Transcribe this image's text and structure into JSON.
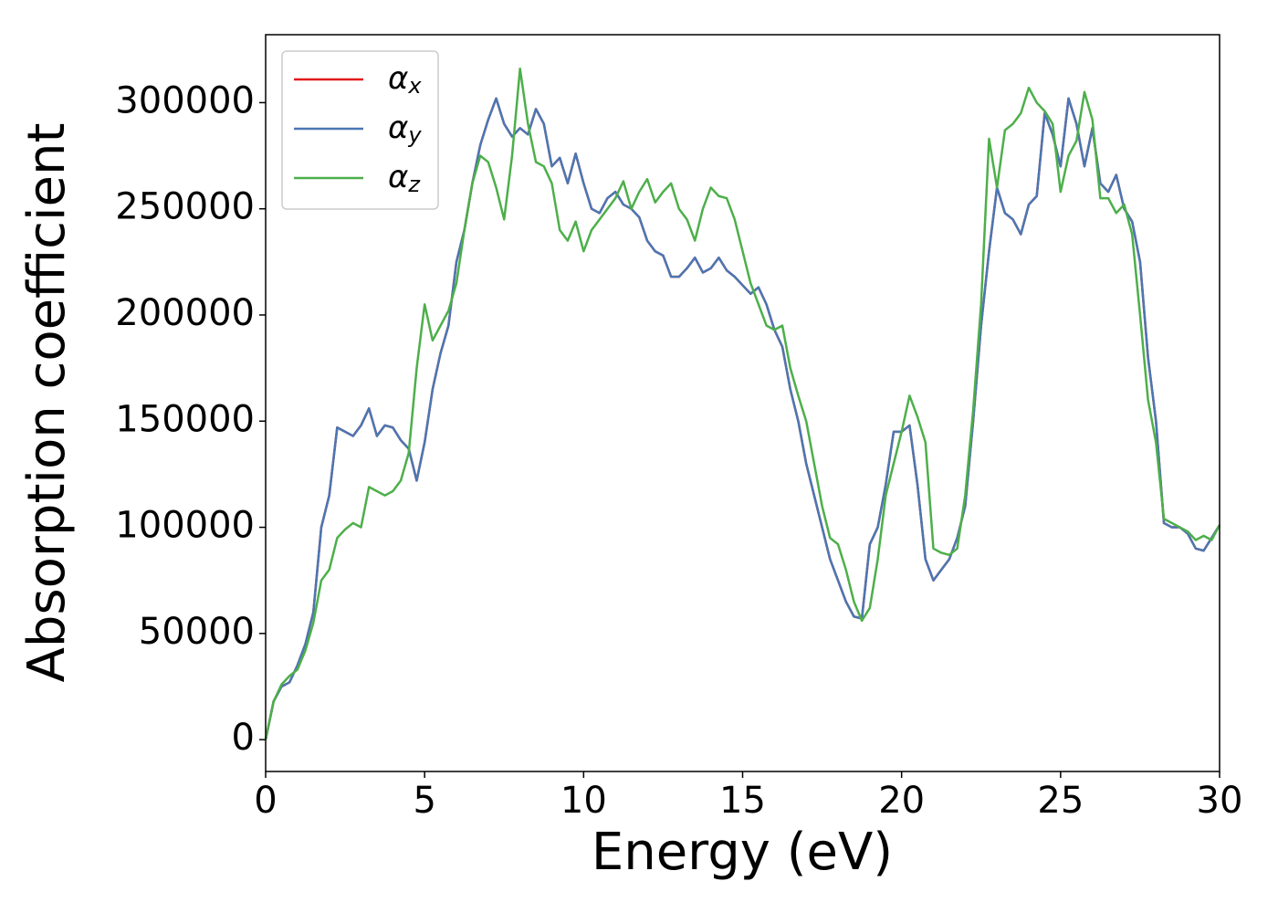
{
  "chart_data": {
    "type": "line",
    "xlabel": "Energy (eV)",
    "ylabel": "Absorption coefficient",
    "x": [
      0,
      0.25,
      0.5,
      0.75,
      1,
      1.25,
      1.5,
      1.75,
      2,
      2.25,
      2.5,
      2.75,
      3,
      3.25,
      3.5,
      3.75,
      4,
      4.25,
      4.5,
      4.75,
      5,
      5.25,
      5.5,
      5.75,
      6,
      6.25,
      6.5,
      6.75,
      7,
      7.25,
      7.5,
      7.75,
      8,
      8.25,
      8.5,
      8.75,
      9,
      9.25,
      9.5,
      9.75,
      10,
      10.25,
      10.5,
      10.75,
      11,
      11.25,
      11.5,
      11.75,
      12,
      12.25,
      12.5,
      12.75,
      13,
      13.25,
      13.5,
      13.75,
      14,
      14.25,
      14.5,
      14.75,
      15,
      15.25,
      15.5,
      15.75,
      16,
      16.25,
      16.5,
      16.75,
      17,
      17.25,
      17.5,
      17.75,
      18,
      18.25,
      18.5,
      18.75,
      19,
      19.25,
      19.5,
      19.75,
      20,
      20.25,
      20.5,
      20.75,
      21,
      21.25,
      21.5,
      21.75,
      22,
      22.25,
      22.5,
      22.75,
      23,
      23.25,
      23.5,
      23.75,
      24,
      24.25,
      24.5,
      24.75,
      25,
      25.25,
      25.5,
      25.75,
      26,
      26.25,
      26.5,
      26.75,
      27,
      27.25,
      27.5,
      27.75,
      28,
      28.25,
      28.5,
      28.75,
      29,
      29.25,
      29.5,
      29.75,
      30
    ],
    "series": [
      {
        "name": "αx",
        "color": "#e41a1c",
        "values": [
          0,
          18000,
          25000,
          27000,
          35000,
          45000,
          60000,
          100000,
          115000,
          147000,
          145000,
          143000,
          148000,
          156000,
          143000,
          148000,
          147000,
          141000,
          137000,
          122000,
          140000,
          165000,
          182000,
          195000,
          225000,
          240000,
          262000,
          280000,
          292000,
          302000,
          290000,
          284000,
          288000,
          285000,
          297000,
          290000,
          270000,
          274000,
          262000,
          276000,
          262000,
          250000,
          248000,
          255000,
          258000,
          252000,
          250000,
          246000,
          235000,
          230000,
          228000,
          218000,
          218000,
          222000,
          227000,
          220000,
          222000,
          227000,
          221000,
          218000,
          214000,
          210000,
          213000,
          205000,
          193000,
          185000,
          165000,
          150000,
          130000,
          115000,
          100000,
          85000,
          75000,
          65000,
          58000,
          57000,
          92000,
          100000,
          120000,
          145000,
          145000,
          148000,
          120000,
          85000,
          75000,
          80000,
          85000,
          95000,
          110000,
          150000,
          195000,
          230000,
          260000,
          248000,
          245000,
          238000,
          252000,
          256000,
          295000,
          285000,
          270000,
          302000,
          290000,
          270000,
          288000,
          262000,
          258000,
          266000,
          250000,
          244000,
          225000,
          180000,
          150000,
          102000,
          100000,
          100000,
          97000,
          90000,
          89000,
          95000,
          101000
        ]
      },
      {
        "name": "αy",
        "color": "#4a77b2",
        "values": [
          0,
          18000,
          25000,
          27000,
          35000,
          45000,
          60000,
          100000,
          115000,
          147000,
          145000,
          143000,
          148000,
          156000,
          143000,
          148000,
          147000,
          141000,
          137000,
          122000,
          140000,
          165000,
          182000,
          195000,
          225000,
          240000,
          262000,
          280000,
          292000,
          302000,
          290000,
          284000,
          288000,
          285000,
          297000,
          290000,
          270000,
          274000,
          262000,
          276000,
          262000,
          250000,
          248000,
          255000,
          258000,
          252000,
          250000,
          246000,
          235000,
          230000,
          228000,
          218000,
          218000,
          222000,
          227000,
          220000,
          222000,
          227000,
          221000,
          218000,
          214000,
          210000,
          213000,
          205000,
          193000,
          185000,
          165000,
          150000,
          130000,
          115000,
          100000,
          85000,
          75000,
          65000,
          58000,
          57000,
          92000,
          100000,
          120000,
          145000,
          145000,
          148000,
          120000,
          85000,
          75000,
          80000,
          85000,
          95000,
          110000,
          150000,
          195000,
          230000,
          260000,
          248000,
          245000,
          238000,
          252000,
          256000,
          295000,
          285000,
          270000,
          302000,
          290000,
          270000,
          288000,
          262000,
          258000,
          266000,
          250000,
          244000,
          225000,
          180000,
          150000,
          102000,
          100000,
          100000,
          97000,
          90000,
          89000,
          95000,
          101000
        ]
      },
      {
        "name": "αz",
        "color": "#4daf4a",
        "values": [
          0,
          18000,
          26000,
          30000,
          33000,
          42000,
          55000,
          75000,
          80000,
          95000,
          99000,
          102000,
          100000,
          119000,
          117000,
          115000,
          117000,
          122000,
          135000,
          175000,
          205000,
          188000,
          195000,
          202000,
          215000,
          240000,
          262000,
          275000,
          272000,
          260000,
          245000,
          275000,
          316000,
          290000,
          272000,
          270000,
          262000,
          240000,
          235000,
          244000,
          230000,
          240000,
          245000,
          250000,
          255000,
          263000,
          250000,
          258000,
          264000,
          253000,
          258000,
          262000,
          250000,
          245000,
          235000,
          250000,
          260000,
          256000,
          255000,
          245000,
          230000,
          215000,
          205000,
          195000,
          193000,
          195000,
          175000,
          162000,
          150000,
          130000,
          110000,
          95000,
          92000,
          80000,
          65000,
          56000,
          62000,
          85000,
          115000,
          130000,
          145000,
          162000,
          152000,
          140000,
          90000,
          88000,
          87000,
          90000,
          115000,
          155000,
          205000,
          283000,
          260000,
          287000,
          290000,
          295000,
          307000,
          300000,
          296000,
          290000,
          258000,
          275000,
          282000,
          305000,
          292000,
          255000,
          255000,
          248000,
          252000,
          238000,
          200000,
          160000,
          140000,
          104000,
          102000,
          100000,
          98000,
          94000,
          96000,
          94000,
          101000
        ]
      }
    ],
    "xlim": [
      0,
      30
    ],
    "xticks": [
      0,
      5,
      10,
      15,
      20,
      25,
      30
    ],
    "ylim": [
      -15000,
      332000
    ],
    "yticks": [
      0,
      50000,
      100000,
      150000,
      200000,
      250000,
      300000
    ],
    "legend": "upper left"
  }
}
